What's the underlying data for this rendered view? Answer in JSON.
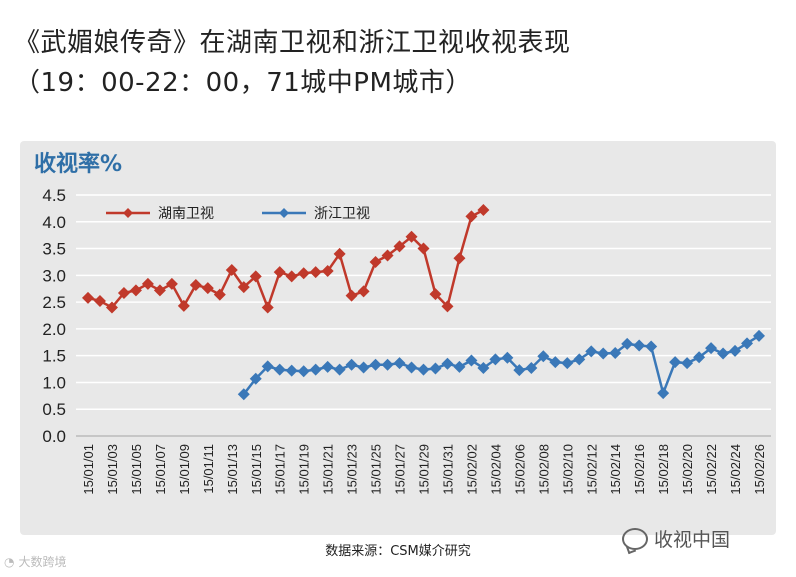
{
  "header": {
    "title_line1": "《武媚娘传奇》在湖南卫视和浙江卫视收视表现",
    "title_line2": "（19：00-22：00，71城中PM城市）"
  },
  "footer": {
    "source": "数据来源：CSM媒介研究",
    "watermark_right": "收视中国",
    "watermark_left": "大数跨境"
  },
  "colors": {
    "hunan": "#c0392b",
    "zhejiang": "#3a78b8",
    "panel": "#e8e8e8",
    "ylabel": "#2f6fa7"
  },
  "chart_data": {
    "type": "line",
    "ylabel": "收视率%",
    "xlabel": "",
    "ylim": [
      0,
      4.5
    ],
    "yticks": [
      "0.0",
      "0.5",
      "1.0",
      "1.5",
      "2.0",
      "2.5",
      "3.0",
      "3.5",
      "4.0",
      "4.5"
    ],
    "grid": true,
    "legend_position": "top-left",
    "x": [
      "15/01/01",
      "15/01/02",
      "15/01/03",
      "15/01/04",
      "15/01/05",
      "15/01/06",
      "15/01/07",
      "15/01/08",
      "15/01/09",
      "15/01/10",
      "15/01/11",
      "15/01/12",
      "15/01/13",
      "15/01/14",
      "15/01/15",
      "15/01/16",
      "15/01/17",
      "15/01/18",
      "15/01/19",
      "15/01/20",
      "15/01/21",
      "15/01/22",
      "15/01/23",
      "15/01/24",
      "15/01/25",
      "15/01/26",
      "15/01/27",
      "15/01/28",
      "15/01/29",
      "15/01/30",
      "15/01/31",
      "15/02/01",
      "15/02/02",
      "15/02/03",
      "15/02/04",
      "15/02/05",
      "15/02/06",
      "15/02/07",
      "15/02/08",
      "15/02/09",
      "15/02/10",
      "15/02/11",
      "15/02/12",
      "15/02/13",
      "15/02/14",
      "15/02/15",
      "15/02/16",
      "15/02/17",
      "15/02/18",
      "15/02/19",
      "15/02/20",
      "15/02/21",
      "15/02/22",
      "15/02/23",
      "15/02/24",
      "15/02/25",
      "15/02/26"
    ],
    "xtick_labels": [
      "15/01/01",
      "15/01/03",
      "15/01/05",
      "15/01/07",
      "15/01/09",
      "15/01/11",
      "15/01/13",
      "15/01/15",
      "15/01/17",
      "15/01/19",
      "15/01/21",
      "15/01/23",
      "15/01/25",
      "15/01/27",
      "15/01/29",
      "15/01/31",
      "15/02/02",
      "15/02/04",
      "15/02/06",
      "15/02/08",
      "15/02/10",
      "15/02/12",
      "15/02/14",
      "15/02/16",
      "15/02/18",
      "15/02/20",
      "15/02/22",
      "15/02/24",
      "15/02/26"
    ],
    "series": [
      {
        "name": "湖南卫视",
        "color": "#c0392b",
        "values": [
          2.58,
          2.52,
          2.4,
          2.67,
          2.72,
          2.84,
          2.72,
          2.84,
          2.43,
          2.82,
          2.76,
          2.64,
          3.1,
          2.78,
          2.98,
          2.4,
          3.06,
          2.98,
          3.04,
          3.06,
          3.08,
          3.4,
          2.62,
          2.7,
          3.25,
          3.37,
          3.54,
          3.72,
          3.5,
          2.65,
          2.42,
          3.32,
          4.1,
          4.22,
          null,
          null,
          null,
          null,
          null,
          null,
          null,
          null,
          null,
          null,
          null,
          null,
          null,
          null,
          null,
          null,
          null,
          null,
          null,
          null,
          null,
          null,
          null
        ]
      },
      {
        "name": "浙江卫视",
        "color": "#3a78b8",
        "values": [
          null,
          null,
          null,
          null,
          null,
          null,
          null,
          null,
          null,
          null,
          null,
          null,
          null,
          0.78,
          1.07,
          1.3,
          1.24,
          1.22,
          1.21,
          1.24,
          1.29,
          1.24,
          1.33,
          1.28,
          1.33,
          1.33,
          1.36,
          1.28,
          1.24,
          1.26,
          1.35,
          1.29,
          1.41,
          1.27,
          1.43,
          1.46,
          1.23,
          1.27,
          1.49,
          1.38,
          1.36,
          1.43,
          1.58,
          1.54,
          1.55,
          1.72,
          1.69,
          1.67,
          0.8,
          1.38,
          1.36,
          1.47,
          1.64,
          1.54,
          1.59,
          1.73,
          1.87
        ]
      }
    ]
  }
}
